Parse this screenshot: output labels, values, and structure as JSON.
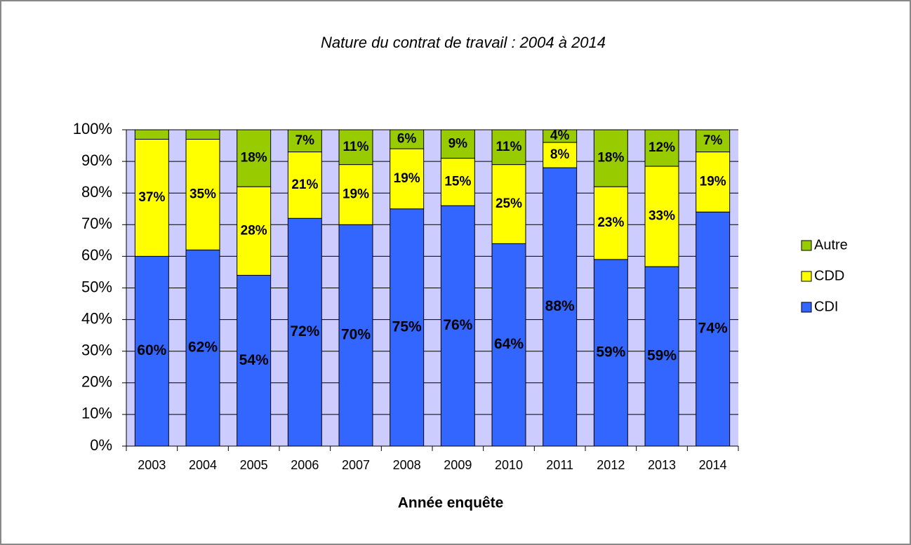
{
  "chart_data": {
    "type": "stacked_percent_bar",
    "title": "Nature du contrat de travail : 2004 à 2014",
    "x_label": "Année enquête",
    "categories": [
      "2003",
      "2004",
      "2005",
      "2006",
      "2007",
      "2008",
      "2009",
      "2010",
      "2011",
      "2012",
      "2013",
      "2014"
    ],
    "series": [
      {
        "name": "CDI",
        "color": "#3366ff",
        "values": [
          60,
          62,
          54,
          72,
          70,
          75,
          76,
          64,
          88,
          59,
          59,
          74
        ],
        "value_labels": [
          "60%",
          "62%",
          "54%",
          "72%",
          "70%",
          "75%",
          "76%",
          "64%",
          "88%",
          "59%",
          "59%",
          "74%"
        ]
      },
      {
        "name": "CDD",
        "color": "#ffff00",
        "values": [
          37,
          35,
          28,
          21,
          19,
          19,
          15,
          25,
          8,
          23,
          33,
          19
        ],
        "value_labels": [
          "37%",
          "35%",
          "28%",
          "21%",
          "19%",
          "19%",
          "15%",
          "25%",
          "8%",
          "23%",
          "33%",
          "19%"
        ]
      },
      {
        "name": "Autre",
        "color": "#99cc00",
        "values": [
          3,
          3,
          18,
          7,
          11,
          6,
          9,
          11,
          4,
          18,
          12,
          7
        ],
        "value_labels": [
          null,
          null,
          "18%",
          "7%",
          "11%",
          "6%",
          "9%",
          "11%",
          "4%",
          "18%",
          "12%",
          "7%"
        ]
      }
    ],
    "ylim": [
      0,
      100
    ],
    "yticks": [
      {
        "value": 0,
        "label": "0%"
      },
      {
        "value": 10,
        "label": "10%"
      },
      {
        "value": 20,
        "label": "20%"
      },
      {
        "value": 30,
        "label": "30%"
      },
      {
        "value": 40,
        "label": "40%"
      },
      {
        "value": 50,
        "label": "50%"
      },
      {
        "value": 60,
        "label": "60%"
      },
      {
        "value": 70,
        "label": "70%"
      },
      {
        "value": 80,
        "label": "80%"
      },
      {
        "value": 90,
        "label": "90%"
      },
      {
        "value": 100,
        "label": "100%"
      }
    ],
    "grid": true,
    "legend": "right",
    "plot_background": "#ccccff"
  }
}
